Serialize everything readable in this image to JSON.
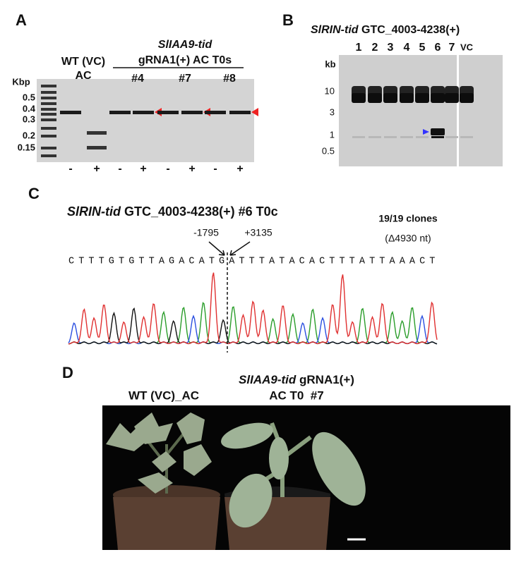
{
  "panel_a": {
    "label": "A",
    "wt_name": "WT (VC)",
    "wt_sub": "AC",
    "line_name": "SlIAA9-tid",
    "line_desc": "gRNA1(+) AC T0s",
    "clones": [
      "#4",
      "#7",
      "#8"
    ],
    "ladder_unit": "Kbp",
    "ladder": [
      "0.5",
      "0.4",
      "0.3",
      "0.2",
      "0.15"
    ],
    "lanes": [
      "-",
      "+",
      "-",
      "+",
      "-",
      "+",
      "-",
      "+"
    ]
  },
  "panel_b": {
    "label": "B",
    "line_name": "SlRIN-tid",
    "line_desc": "GTC_4003-4238(+)",
    "lanes": [
      "1",
      "2",
      "3",
      "4",
      "5",
      "6",
      "7",
      "VC"
    ],
    "ladder_unit": "kb",
    "ladder": [
      "10",
      "3",
      "1",
      "0.5"
    ]
  },
  "panel_c": {
    "label": "C",
    "line_name": "SlRIN-tid",
    "line_desc": "GTC_4003-4238(+) #6 T0c",
    "clones": "19/19 clones",
    "deletion": "(Δ4930 nt)",
    "left_pos": "-1795",
    "right_pos": "+3135",
    "sequence": "CTTTGTGTTAGACATGATTTATACACTTTATTAAACT"
  },
  "panel_d": {
    "label": "D",
    "line_name": "SlIAA9-tid",
    "line_desc": "gRNA1(+)",
    "left_plant": "WT (VC)_AC",
    "right_plant": "AC T0  #7"
  }
}
